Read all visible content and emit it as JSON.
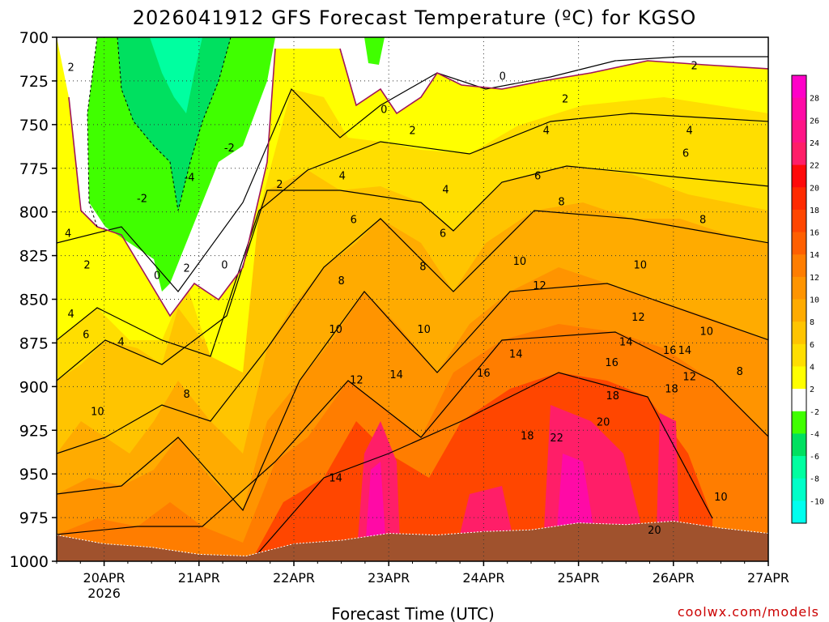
{
  "chart_data": {
    "type": "heatmap",
    "title": "2026041912 GFS Forecast Temperature (ºC) for KGSO",
    "xlabel": "Forecast Time (UTC)",
    "ylabel": "",
    "credit": "coolwx.com/models",
    "x_ticks": [
      {
        "label": "20APR",
        "sub": "2026",
        "day": 1
      },
      {
        "label": "21APR",
        "sub": "",
        "day": 2
      },
      {
        "label": "22APR",
        "sub": "",
        "day": 3
      },
      {
        "label": "23APR",
        "sub": "",
        "day": 4
      },
      {
        "label": "24APR",
        "sub": "",
        "day": 5
      },
      {
        "label": "25APR",
        "sub": "",
        "day": 6
      },
      {
        "label": "26APR",
        "sub": "",
        "day": 7
      },
      {
        "label": "27APR",
        "sub": "",
        "day": 8
      }
    ],
    "xlim": [
      0.5,
      8.0
    ],
    "y_ticks": [
      700,
      725,
      750,
      775,
      800,
      825,
      850,
      875,
      900,
      925,
      950,
      975,
      1000
    ],
    "y_tick_labels": [
      "700",
      "725",
      "750",
      "775",
      "800",
      "825",
      "850",
      "875",
      "900",
      "925",
      "950",
      "975",
      "1000"
    ],
    "ylim": [
      700,
      1000
    ],
    "legend_levels": [
      28,
      26,
      24,
      22,
      20,
      18,
      16,
      14,
      12,
      10,
      8,
      6,
      4,
      2,
      -2,
      -4,
      -6,
      -8,
      -10
    ],
    "legend_colors": [
      "#ff00c8",
      "#ff0aa6",
      "#ff1486",
      "#ff1e68",
      "#ff0a0a",
      "#ff2a00",
      "#ff4600",
      "#ff5f00",
      "#ff7d00",
      "#ff9400",
      "#ffab00",
      "#ffc400",
      "#ffde00",
      "#ffff00",
      "#ffffff",
      "#40ff00",
      "#00e060",
      "#00ffa0",
      "#00ffc8",
      "#00ffee"
    ],
    "surface_pressure": [
      [
        0.5,
        985
      ],
      [
        1.0,
        990
      ],
      [
        1.5,
        992
      ],
      [
        2.0,
        996
      ],
      [
        2.5,
        997
      ],
      [
        3.0,
        990
      ],
      [
        3.5,
        988
      ],
      [
        4.0,
        984
      ],
      [
        4.5,
        985
      ],
      [
        5.0,
        983
      ],
      [
        5.5,
        982
      ],
      [
        6.0,
        978
      ],
      [
        6.5,
        979
      ],
      [
        7.0,
        977
      ],
      [
        7.5,
        981
      ],
      [
        8.0,
        984
      ]
    ],
    "contour_labels": [
      {
        "t": "2",
        "day": 0.65,
        "p": 717
      },
      {
        "t": "4",
        "day": 0.62,
        "p": 812
      },
      {
        "t": "2",
        "day": 0.82,
        "p": 830
      },
      {
        "t": "4",
        "day": 0.65,
        "p": 858
      },
      {
        "t": "6",
        "day": 0.81,
        "p": 870
      },
      {
        "t": "4",
        "day": 1.18,
        "p": 874
      },
      {
        "t": "10",
        "day": 0.93,
        "p": 914
      },
      {
        "t": "-2",
        "day": 1.4,
        "p": 792
      },
      {
        "t": "0",
        "day": 1.56,
        "p": 836
      },
      {
        "t": "2",
        "day": 1.87,
        "p": 832
      },
      {
        "t": "0",
        "day": 2.27,
        "p": 830
      },
      {
        "t": "8",
        "day": 1.87,
        "p": 904
      },
      {
        "t": "-2",
        "day": 2.32,
        "p": 763
      },
      {
        "t": "-4",
        "day": 1.9,
        "p": 780
      },
      {
        "t": "2",
        "day": 2.85,
        "p": 784
      },
      {
        "t": "4",
        "day": 3.51,
        "p": 779
      },
      {
        "t": "6",
        "day": 3.63,
        "p": 804
      },
      {
        "t": "8",
        "day": 3.5,
        "p": 839
      },
      {
        "t": "10",
        "day": 3.44,
        "p": 867
      },
      {
        "t": "12",
        "day": 3.66,
        "p": 896
      },
      {
        "t": "14",
        "day": 4.08,
        "p": 893
      },
      {
        "t": "14",
        "day": 3.44,
        "p": 952
      },
      {
        "t": "0",
        "day": 3.95,
        "p": 741
      },
      {
        "t": "2",
        "day": 4.25,
        "p": 753
      },
      {
        "t": "4",
        "day": 4.6,
        "p": 787
      },
      {
        "t": "6",
        "day": 4.57,
        "p": 812
      },
      {
        "t": "8",
        "day": 4.36,
        "p": 831
      },
      {
        "t": "10",
        "day": 4.37,
        "p": 867
      },
      {
        "t": "16",
        "day": 5.0,
        "p": 892
      },
      {
        "t": "18",
        "day": 5.46,
        "p": 928
      },
      {
        "t": "0",
        "day": 5.2,
        "p": 722
      },
      {
        "t": "2",
        "day": 5.86,
        "p": 735
      },
      {
        "t": "4",
        "day": 5.66,
        "p": 753
      },
      {
        "t": "6",
        "day": 5.57,
        "p": 779
      },
      {
        "t": "8",
        "day": 5.82,
        "p": 794
      },
      {
        "t": "10",
        "day": 5.38,
        "p": 828
      },
      {
        "t": "12",
        "day": 5.59,
        "p": 842
      },
      {
        "t": "14",
        "day": 5.34,
        "p": 881
      },
      {
        "t": "22",
        "day": 5.77,
        "p": 929
      },
      {
        "t": "20",
        "day": 6.26,
        "p": 920
      },
      {
        "t": "18",
        "day": 6.36,
        "p": 905
      },
      {
        "t": "16",
        "day": 6.35,
        "p": 886
      },
      {
        "t": "14",
        "day": 6.5,
        "p": 874
      },
      {
        "t": "12",
        "day": 6.63,
        "p": 860
      },
      {
        "t": "10",
        "day": 6.65,
        "p": 830
      },
      {
        "t": "8",
        "day": 7.31,
        "p": 804
      },
      {
        "t": "6",
        "day": 7.13,
        "p": 766
      },
      {
        "t": "4",
        "day": 7.17,
        "p": 753
      },
      {
        "t": "2",
        "day": 7.22,
        "p": 716
      },
      {
        "t": "16",
        "day": 6.96,
        "p": 879
      },
      {
        "t": "14",
        "day": 7.12,
        "p": 879
      },
      {
        "t": "18",
        "day": 6.98,
        "p": 901
      },
      {
        "t": "12",
        "day": 7.17,
        "p": 894
      },
      {
        "t": "10",
        "day": 7.35,
        "p": 868
      },
      {
        "t": "8",
        "day": 7.7,
        "p": 891
      },
      {
        "t": "20",
        "day": 6.8,
        "p": 982
      },
      {
        "t": "10",
        "day": 7.5,
        "p": 963
      }
    ]
  }
}
